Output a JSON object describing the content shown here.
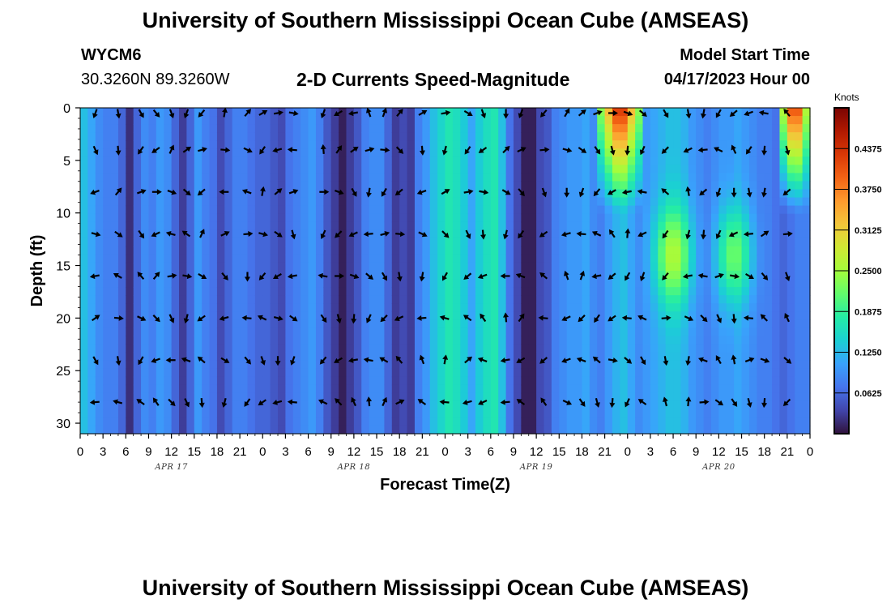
{
  "header": {
    "title": "University of Southern Mississippi Ocean Cube (AMSEAS)",
    "station_id": "WYCM6",
    "coordinates": "30.3260N  89.3260W",
    "plot_subtitle": "2-D Currents Speed-Magnitude",
    "model_start_label": "Model Start Time",
    "model_start_value": "04/17/2023 Hour 00"
  },
  "footer": {
    "title": "University of Southern Mississippi Ocean Cube (AMSEAS)"
  },
  "chart_data": {
    "type": "heatmap",
    "title": "2-D Currents Speed-Magnitude",
    "xlabel": "Forecast Time(Z)",
    "ylabel": "Depth (ft)",
    "x_tick_labels": [
      "0",
      "3",
      "6",
      "9",
      "12",
      "15",
      "18",
      "21",
      "0",
      "3",
      "6",
      "9",
      "12",
      "15",
      "18",
      "21",
      "0",
      "3",
      "6",
      "9",
      "12",
      "15",
      "18",
      "21",
      "0",
      "3",
      "6",
      "9",
      "12",
      "15",
      "18",
      "21",
      "0"
    ],
    "x_hours": [
      0,
      3,
      6,
      9,
      12,
      15,
      18,
      21,
      24,
      27,
      30,
      33,
      36,
      39,
      42,
      45,
      48,
      51,
      54,
      57,
      60,
      63,
      66,
      69,
      72,
      75,
      78,
      81,
      84,
      87,
      90,
      93,
      96
    ],
    "xlim_hours": [
      0,
      96
    ],
    "day_labels": [
      {
        "label": "APR 17",
        "hour": 12
      },
      {
        "label": "APR 18",
        "hour": 36
      },
      {
        "label": "APR 19",
        "hour": 60
      },
      {
        "label": "APR 20",
        "hour": 84
      }
    ],
    "y_tick_labels": [
      "0",
      "5",
      "10",
      "15",
      "20",
      "25",
      "30"
    ],
    "y_ticks_ft": [
      0,
      5,
      10,
      15,
      20,
      25,
      30
    ],
    "ylim_ft": [
      0,
      31
    ],
    "y_inverted": true,
    "colorbar": {
      "unit": "Knots",
      "range": [
        0,
        0.5
      ],
      "tick_labels": [
        "0.0625",
        "0.1250",
        "0.1875",
        "0.2500",
        "0.3125",
        "0.3750",
        "0.4375"
      ],
      "tick_values": [
        0.0625,
        0.125,
        0.1875,
        0.25,
        0.3125,
        0.375,
        0.4375
      ],
      "colors": [
        "#30123b",
        "#4145ab",
        "#4675ed",
        "#39a2fc",
        "#1bcfd4",
        "#24eca6",
        "#61fc6c",
        "#a4fc3b",
        "#d1e834",
        "#f3c63a",
        "#fe9b2d",
        "#f36315",
        "#d93806",
        "#b11901",
        "#7a0402"
      ]
    },
    "speed_field": {
      "depths_ft": [
        0.5,
        4,
        8,
        12,
        16,
        20,
        24,
        28,
        31
      ],
      "hours": [
        0,
        1,
        2,
        3,
        4,
        5,
        6,
        7,
        8,
        9,
        10,
        11,
        12,
        13,
        14,
        15,
        16,
        17,
        18,
        19,
        20,
        21,
        22,
        23,
        24,
        25,
        26,
        27,
        28,
        29,
        30,
        31,
        32,
        33,
        34,
        35,
        36,
        37,
        38,
        39,
        40,
        41,
        42,
        43,
        44,
        45,
        46,
        47,
        48,
        49,
        50,
        51,
        52,
        53,
        54,
        55,
        56,
        57,
        58,
        59,
        60,
        61,
        62,
        63,
        64,
        65,
        66,
        67,
        68,
        69,
        70,
        71,
        72,
        73,
        74,
        75,
        76,
        77,
        78,
        79,
        80,
        81,
        82,
        83,
        84,
        85,
        86,
        87,
        88,
        89,
        90,
        91,
        92,
        93,
        94,
        95,
        96
      ],
      "base_by_hour": [
        0.13,
        0.11,
        0.09,
        0.08,
        0.08,
        0.06,
        0.02,
        0.06,
        0.09,
        0.08,
        0.1,
        0.09,
        0.06,
        0.03,
        0.06,
        0.1,
        0.08,
        0.07,
        0.04,
        0.06,
        0.08,
        0.08,
        0.07,
        0.06,
        0.06,
        0.05,
        0.04,
        0.07,
        0.08,
        0.09,
        0.1,
        0.08,
        0.05,
        0.03,
        0.01,
        0.03,
        0.05,
        0.08,
        0.09,
        0.09,
        0.06,
        0.03,
        0.04,
        0.03,
        0.08,
        0.1,
        0.13,
        0.15,
        0.17,
        0.16,
        0.14,
        0.11,
        0.14,
        0.16,
        0.17,
        0.13,
        0.07,
        0.04,
        0.01,
        0.01,
        0.04,
        0.05,
        0.08,
        0.09,
        0.1,
        0.1,
        0.11,
        0.09,
        0.08,
        0.1,
        0.12,
        0.13,
        0.11,
        0.09,
        0.1,
        0.11,
        0.12,
        0.13,
        0.13,
        0.12,
        0.1,
        0.09,
        0.08,
        0.09,
        0.1,
        0.1,
        0.11,
        0.1,
        0.09,
        0.08,
        0.08,
        0.07,
        0.06,
        0.07,
        0.08,
        0.08,
        0.08
      ],
      "surface_hotspots": [
        {
          "hour_start": 68,
          "hour_end": 74,
          "peak": 0.48
        },
        {
          "hour_start": 92,
          "hour_end": 96,
          "peak": 0.48
        }
      ],
      "mid_depth_hotspots": [
        {
          "hour": 78,
          "depth_ft": 14,
          "peak": 0.26
        },
        {
          "hour": 86,
          "depth_ft": 14,
          "peak": 0.22
        }
      ]
    },
    "vectors": {
      "depths_ft": [
        0.5,
        4,
        8,
        12,
        16,
        20,
        24,
        28
      ],
      "hours": [
        2,
        5,
        8,
        10,
        12,
        14,
        16,
        19,
        22,
        24,
        26,
        28,
        32,
        34,
        36,
        38,
        40,
        42,
        45,
        48,
        51,
        53,
        56,
        58,
        61,
        64,
        66,
        68,
        70,
        72,
        74,
        77,
        80,
        82,
        84,
        86,
        88,
        90,
        93
      ],
      "direction_pattern_deg": [
        200,
        170,
        150,
        140,
        160,
        200,
        220,
        10,
        40,
        60,
        80,
        100,
        200,
        240,
        260,
        340,
        20,
        40,
        60,
        80,
        120,
        160,
        180,
        200,
        220,
        30,
        50,
        70,
        90,
        110,
        130,
        150,
        170,
        190,
        210,
        230,
        250,
        280,
        320
      ]
    }
  }
}
